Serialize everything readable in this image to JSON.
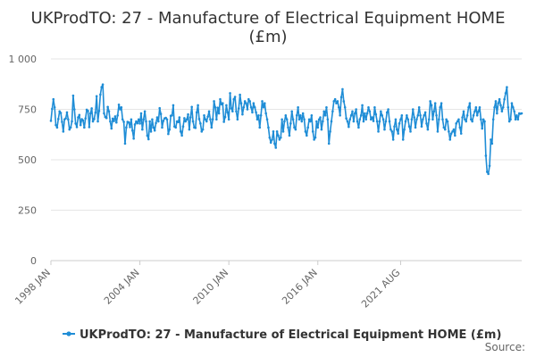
{
  "chart_data": {
    "type": "line",
    "title_lines": [
      "UKProdTO: 27 - Manufacture of Electrical Equipment HOME",
      "(£m)"
    ],
    "series": [
      {
        "name": "UKProdTO: 27 - Manufacture of Electrical Equipment HOME (£m)",
        "color": "#1f8dd6",
        "start": "1998-01",
        "values": [
          693,
          752,
          800,
          760,
          672,
          660,
          702,
          740,
          732,
          688,
          640,
          700,
          705,
          735,
          700,
          650,
          660,
          690,
          818,
          750,
          680,
          662,
          710,
          722,
          672,
          701,
          695,
          660,
          705,
          748,
          742,
          662,
          730,
          755,
          690,
          702,
          734,
          815,
          690,
          742,
          823,
          860,
          873,
          730,
          712,
          707,
          762,
          740,
          690,
          655,
          704,
          692,
          715,
          685,
          720,
          773,
          750,
          760,
          700,
          688,
          580,
          660,
          688,
          685,
          662,
          700,
          645,
          605,
          675,
          690,
          681,
          700,
          680,
          730,
          650,
          700,
          740,
          690,
          620,
          602,
          690,
          640,
          700,
          660,
          645,
          682,
          710,
          690,
          756,
          727,
          660,
          693,
          705,
          708,
          700,
          628,
          650,
          718,
          720,
          770,
          665,
          660,
          690,
          687,
          710,
          640,
          620,
          665,
          706,
          690,
          700,
          725,
          650,
          710,
          762,
          690,
          660,
          658,
          735,
          770,
          702,
          680,
          640,
          650,
          720,
          700,
          690,
          714,
          740,
          700,
          660,
          701,
          790,
          760,
          700,
          758,
          730,
          800,
          775,
          780,
          688,
          712,
          770,
          735,
          700,
          830,
          755,
          740,
          800,
          812,
          740,
          700,
          755,
          822,
          780,
          725,
          760,
          790,
          780,
          750,
          800,
          790,
          760,
          735,
          780,
          760,
          735,
          700,
          720,
          660,
          720,
          790,
          760,
          780,
          730,
          700,
          660,
          610,
          585,
          600,
          640,
          580,
          560,
          640,
          620,
          600,
          610,
          700,
          640,
          690,
          720,
          700,
          660,
          620,
          680,
          740,
          700,
          660,
          650,
          720,
          760,
          700,
          720,
          690,
          730,
          700,
          640,
          620,
          660,
          700,
          690,
          720,
          640,
          600,
          610,
          690,
          660,
          700,
          710,
          650,
          690,
          740,
          720,
          760,
          700,
          580,
          640,
          690,
          740,
          790,
          800,
          780,
          790,
          760,
          720,
          810,
          850,
          790,
          760,
          705,
          690,
          663,
          700,
          720,
          740,
          690,
          730,
          750,
          690,
          660,
          700,
          720,
          770,
          690,
          730,
          700,
          730,
          760,
          740,
          700,
          710,
          692,
          760,
          725,
          690,
          640,
          690,
          740,
          720,
          700,
          650,
          690,
          735,
          750,
          690,
          650,
          640,
          600,
          665,
          700,
          650,
          630,
          680,
          700,
          720,
          600,
          650,
          690,
          720,
          700,
          665,
          640,
          700,
          750,
          710,
          660,
          700,
          720,
          760,
          720,
          665,
          700,
          720,
          735,
          680,
          650,
          700,
          790,
          770,
          700,
          740,
          780,
          720,
          640,
          700,
          760,
          780,
          700,
          660,
          650,
          700,
          690,
          640,
          600,
          630,
          640,
          650,
          620,
          680,
          690,
          700,
          660,
          630,
          710,
          740,
          700,
          690,
          720,
          760,
          780,
          700,
          690,
          720,
          740,
          760,
          720,
          740,
          760,
          700,
          655,
          700,
          690,
          520,
          440,
          430,
          470,
          600,
          580,
          700,
          760,
          790,
          730,
          780,
          800,
          770,
          740,
          760,
          800,
          830,
          860,
          760,
          690,
          700,
          780,
          760,
          740,
          700,
          720,
          700,
          730,
          728,
          730
        ]
      }
    ],
    "x_tick_labels": [
      "1998 JAN",
      "2004 JAN",
      "2010 JAN",
      "2016 JAN",
      "2021 AUG"
    ],
    "x_tick_dates": [
      "1998-01",
      "2004-01",
      "2010-01",
      "2016-01",
      "2021-08"
    ],
    "y_ticks": [
      0,
      250,
      500,
      750,
      1000
    ],
    "y_tick_labels": [
      "0",
      "250",
      "500",
      "750",
      "1 000"
    ],
    "ylim": [
      0,
      1000
    ],
    "grid": true,
    "legend_position": "bottom"
  },
  "legend": {
    "label": "UKProdTO: 27 - Manufacture of Electrical Equipment HOME (£m)"
  },
  "source_label": "Source:"
}
